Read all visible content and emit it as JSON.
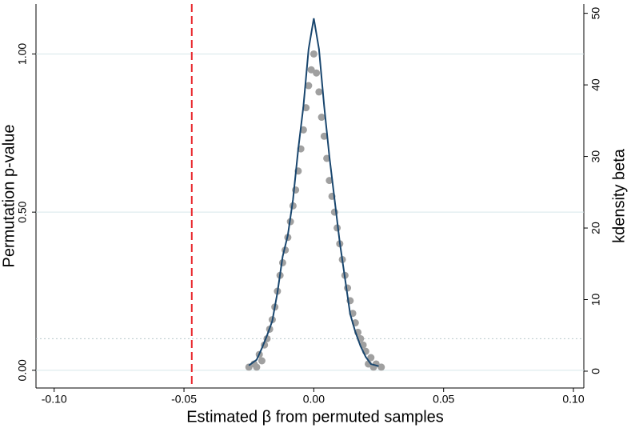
{
  "chart_data": {
    "type": "scatter",
    "x_label": "Estimated β from permuted samples",
    "y_label": "Permutation p-value",
    "y2_label": "kdensity beta",
    "xlim": [
      -0.107,
      0.104
    ],
    "ylim": [
      -0.056,
      1.158
    ],
    "y2lim": [
      -2.35,
      51.3
    ],
    "xticks": [
      {
        "value": -0.1,
        "label": "-0.10"
      },
      {
        "value": -0.05,
        "label": "-0.05"
      },
      {
        "value": 0,
        "label": "0.00"
      },
      {
        "value": 0.05,
        "label": "0.05"
      },
      {
        "value": 0.1,
        "label": "0.10"
      }
    ],
    "yticks": [
      {
        "value": 0,
        "label": "0.00"
      },
      {
        "value": 0.5,
        "label": "0.50"
      },
      {
        "value": 1,
        "label": "1.00"
      }
    ],
    "y2ticks": [
      0,
      10,
      20,
      30,
      40,
      50
    ],
    "grid": true,
    "reference_lines": [
      {
        "axis": "x",
        "value": -0.047,
        "color": "#e8262b",
        "style": "dashed"
      },
      {
        "axis": "y",
        "value": 0.1,
        "color": "#b8c8cc",
        "style": "dotted"
      }
    ],
    "series": [
      {
        "type": "scatter",
        "color": "#a0a0a0",
        "x": [
          -0.025,
          -0.023,
          -0.021,
          -0.019,
          -0.018,
          -0.017,
          -0.016,
          -0.015,
          -0.014,
          -0.013,
          -0.012,
          -0.011,
          -0.01,
          -0.009,
          -0.008,
          -0.007,
          -0.006,
          -0.005,
          -0.004,
          -0.003,
          -0.002,
          -0.001,
          0,
          0.001,
          0.002,
          0.003,
          0.004,
          0.005,
          0.006,
          0.007,
          0.008,
          0.009,
          0.01,
          0.011,
          0.012,
          0.013,
          0.014,
          0.015,
          0.016,
          0.017,
          0.018,
          0.019,
          0.02,
          0.022,
          0.024,
          0.026,
          -0.02,
          0.021,
          -0.022,
          0.023
        ],
        "values": [
          0.01,
          0.02,
          0.05,
          0.08,
          0.1,
          0.13,
          0.16,
          0.2,
          0.25,
          0.3,
          0.34,
          0.38,
          0.42,
          0.47,
          0.52,
          0.57,
          0.63,
          0.7,
          0.76,
          0.83,
          0.9,
          0.95,
          1.0,
          0.94,
          0.88,
          0.8,
          0.74,
          0.67,
          0.6,
          0.55,
          0.5,
          0.45,
          0.4,
          0.35,
          0.3,
          0.26,
          0.22,
          0.18,
          0.15,
          0.12,
          0.1,
          0.08,
          0.06,
          0.04,
          0.02,
          0.01,
          0.03,
          0.02,
          0.01,
          0.01
        ]
      },
      {
        "type": "line",
        "axis": "y2",
        "color": "#1a476f",
        "x": [
          -0.025,
          -0.022,
          -0.02,
          -0.018,
          -0.016,
          -0.014,
          -0.012,
          -0.01,
          -0.008,
          -0.006,
          -0.004,
          -0.002,
          0,
          0.002,
          0.004,
          0.006,
          0.008,
          0.01,
          0.012,
          0.014,
          0.016,
          0.018,
          0.02,
          0.022,
          0.025
        ],
        "values": [
          0.8,
          1.6,
          3.2,
          5,
          7,
          11,
          16,
          19,
          24,
          31,
          37,
          45,
          49.3,
          45,
          37,
          30,
          24,
          18,
          13,
          8,
          5.5,
          3.5,
          2,
          1,
          0.7
        ]
      }
    ]
  }
}
